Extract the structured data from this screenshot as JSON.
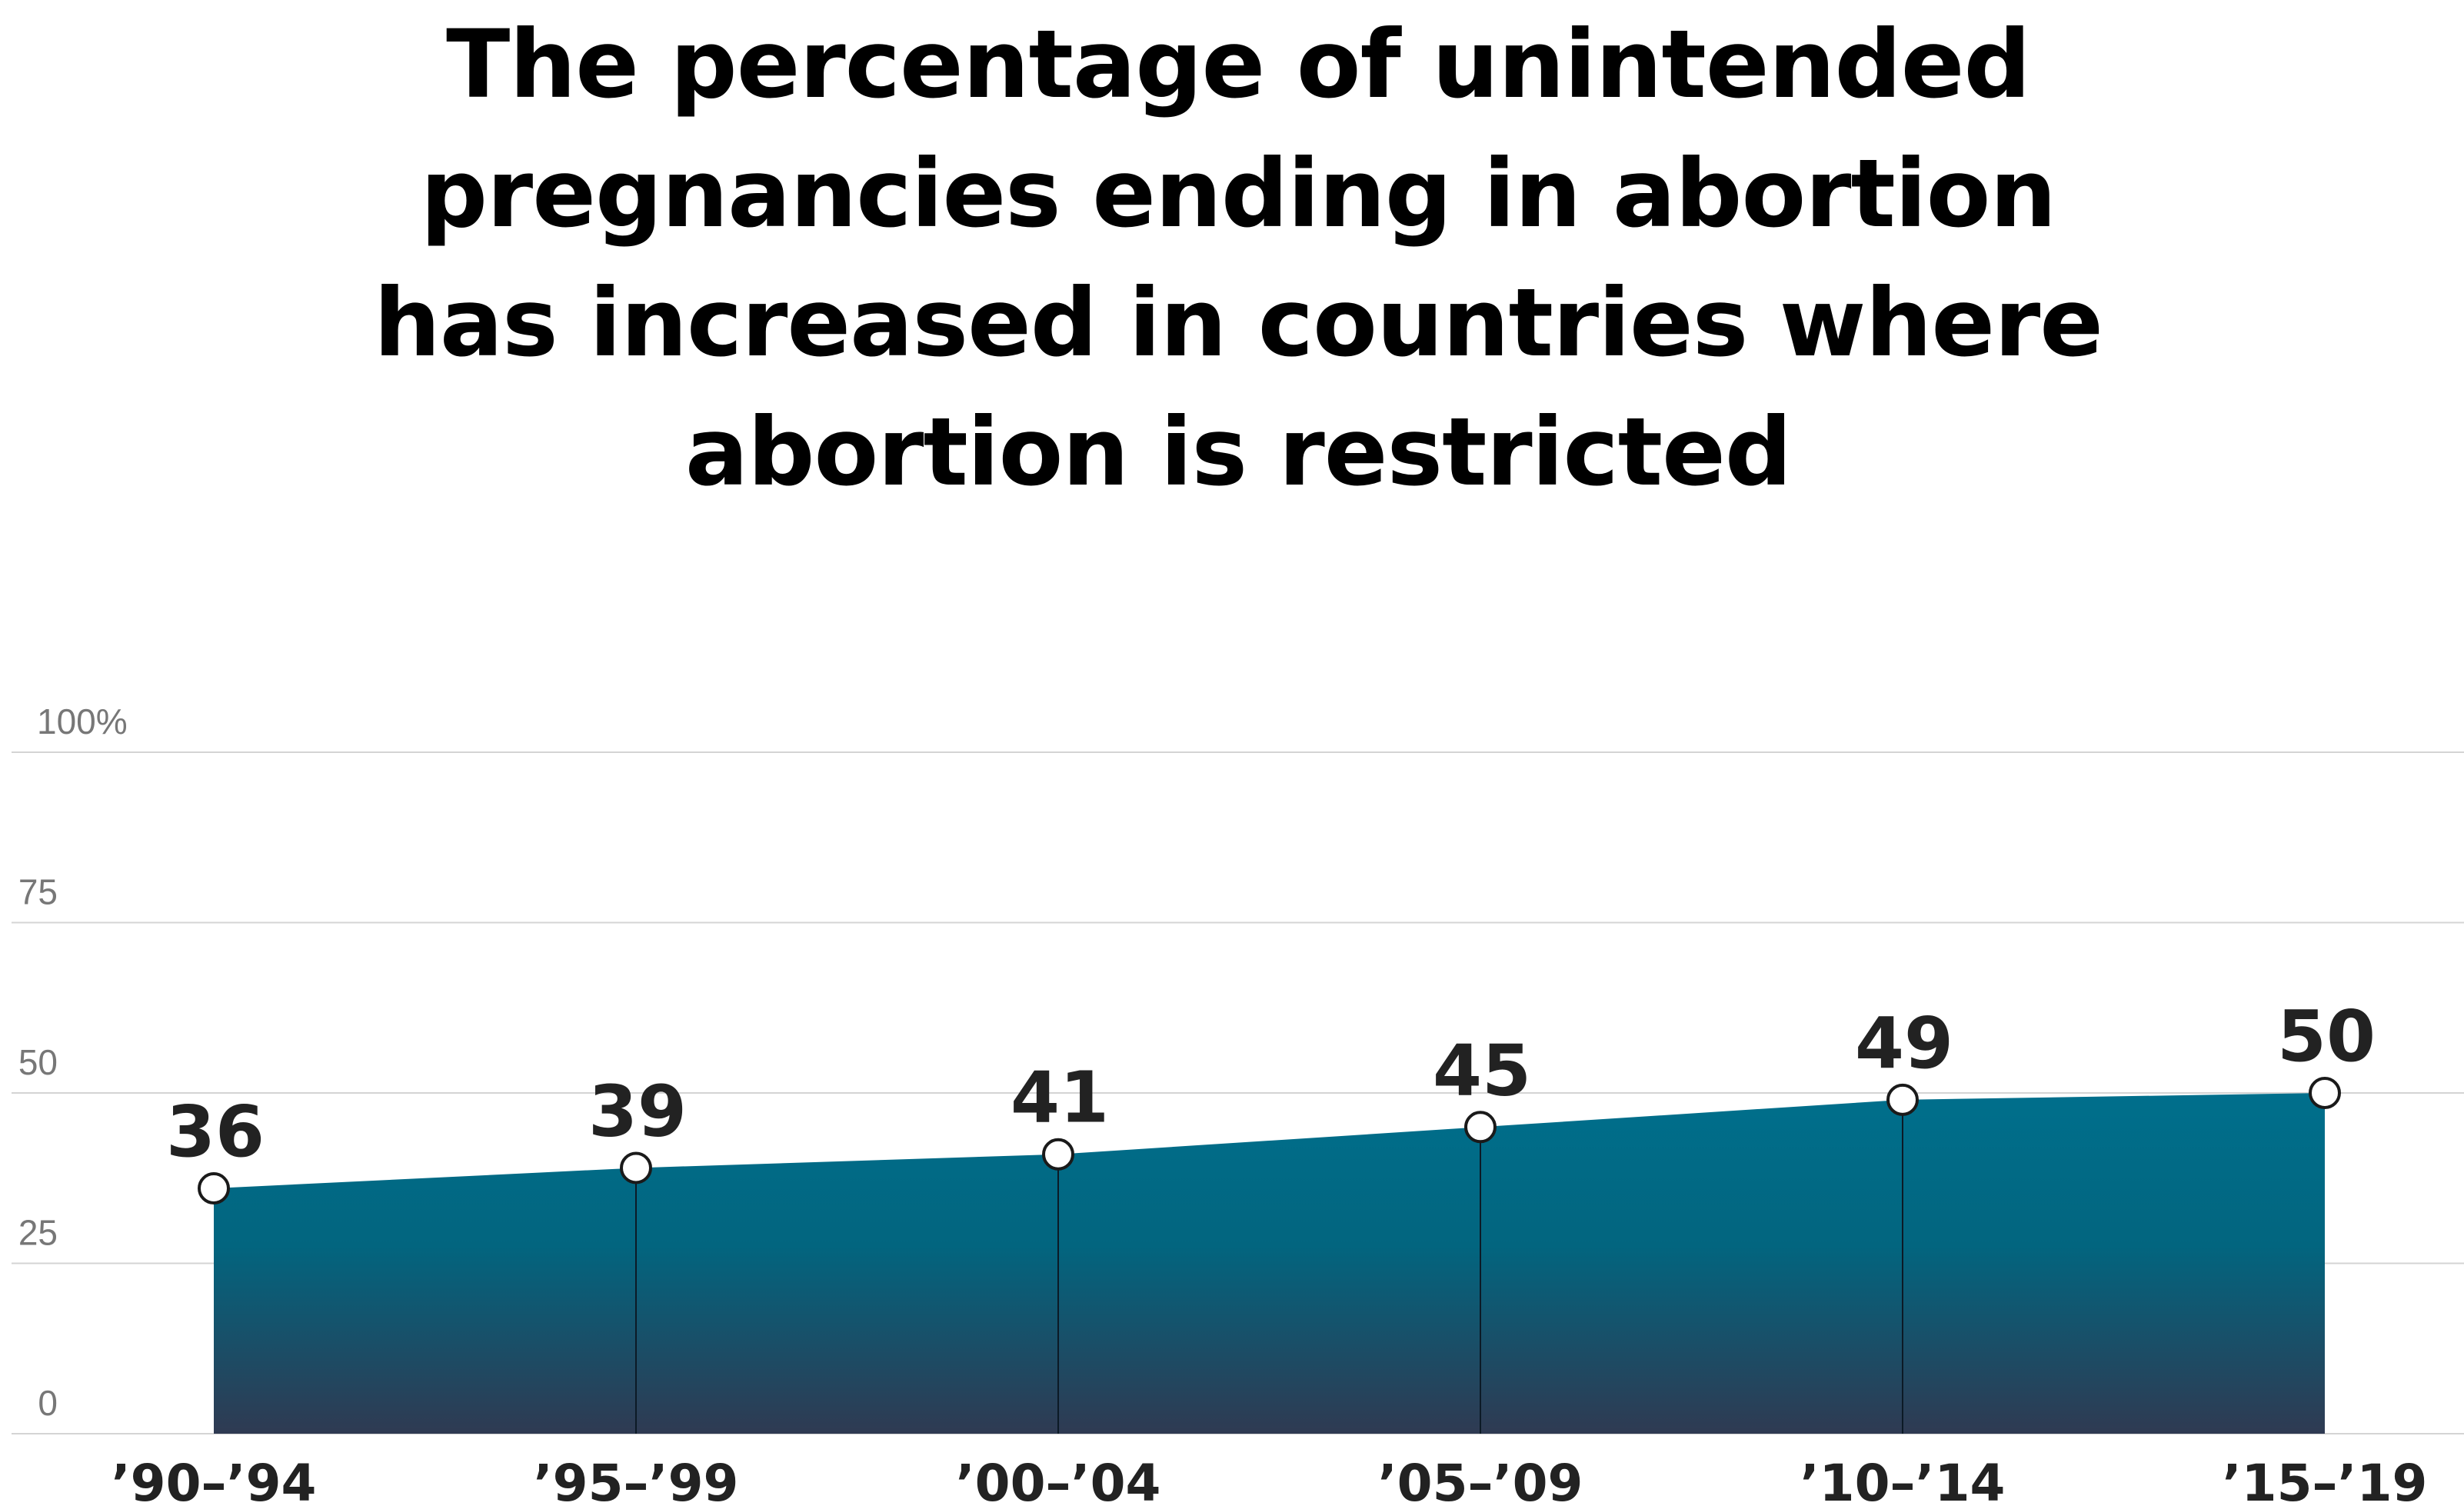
{
  "chart_data": {
    "type": "area",
    "title_lines": [
      "The percentage of unintended",
      "pregnancies ending in abortion",
      "has increased in countries where",
      "abortion is restricted"
    ],
    "categories": [
      "’90–’94",
      "’95–’99",
      "’00–’04",
      "’05–’09",
      "’10–’14",
      "’15–’19"
    ],
    "series": [
      {
        "values": [
          36,
          39,
          41,
          45,
          49,
          50
        ]
      }
    ],
    "data_labels": [
      "36",
      "39",
      "41",
      "45",
      "49",
      "50"
    ],
    "y_ticks": [
      {
        "value": 0,
        "label": "0"
      },
      {
        "value": 25,
        "label": "25"
      },
      {
        "value": 50,
        "label": "50"
      },
      {
        "value": 75,
        "label": "75"
      },
      {
        "value": 100,
        "label": "100%"
      }
    ],
    "ylim": [
      0,
      100
    ],
    "grid": true,
    "legend": "none",
    "colors": {
      "fill_top": "#006f8c",
      "fill_bottom": "#2f3a52",
      "gridline": "#d4d4d4",
      "marker_fill": "#ffffff",
      "marker_stroke": "#1a1a1a"
    }
  }
}
